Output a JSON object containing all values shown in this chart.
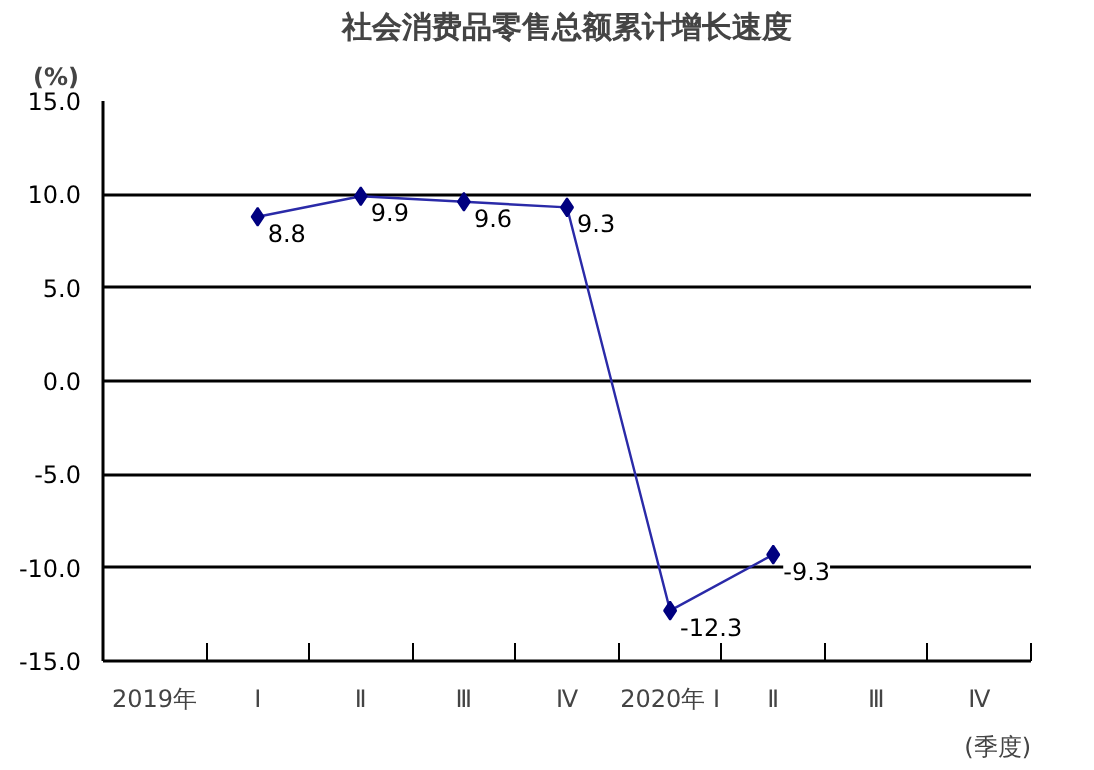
{
  "chart_data": {
    "type": "line",
    "title": "社会消费品零售总额累计增长速度",
    "ylabel": "(%)",
    "xlabel": "(季度)",
    "categories": [
      "2019年",
      "Ⅰ",
      "Ⅱ",
      "Ⅲ",
      "Ⅳ",
      "2020年 Ⅰ",
      "Ⅱ",
      "Ⅲ",
      "Ⅳ"
    ],
    "series": [
      {
        "color": "#2a2aa8",
        "values": [
          null,
          8.8,
          9.9,
          9.6,
          9.3,
          -12.3,
          -9.3,
          null,
          null
        ]
      }
    ],
    "ylim": [
      -15,
      15
    ],
    "yticks": [
      {
        "value": -15,
        "label": "-15.0"
      },
      {
        "value": -10,
        "label": "-10.0"
      },
      {
        "value": -5,
        "label": "-5.0"
      },
      {
        "value": 0,
        "label": "0.0"
      },
      {
        "value": 5,
        "label": "5.0"
      },
      {
        "value": 10,
        "label": "10.0"
      },
      {
        "value": 15,
        "label": "15.0"
      }
    ],
    "grid": "y",
    "marker": "diamond",
    "line_style": "solid",
    "data_labels": true
  }
}
